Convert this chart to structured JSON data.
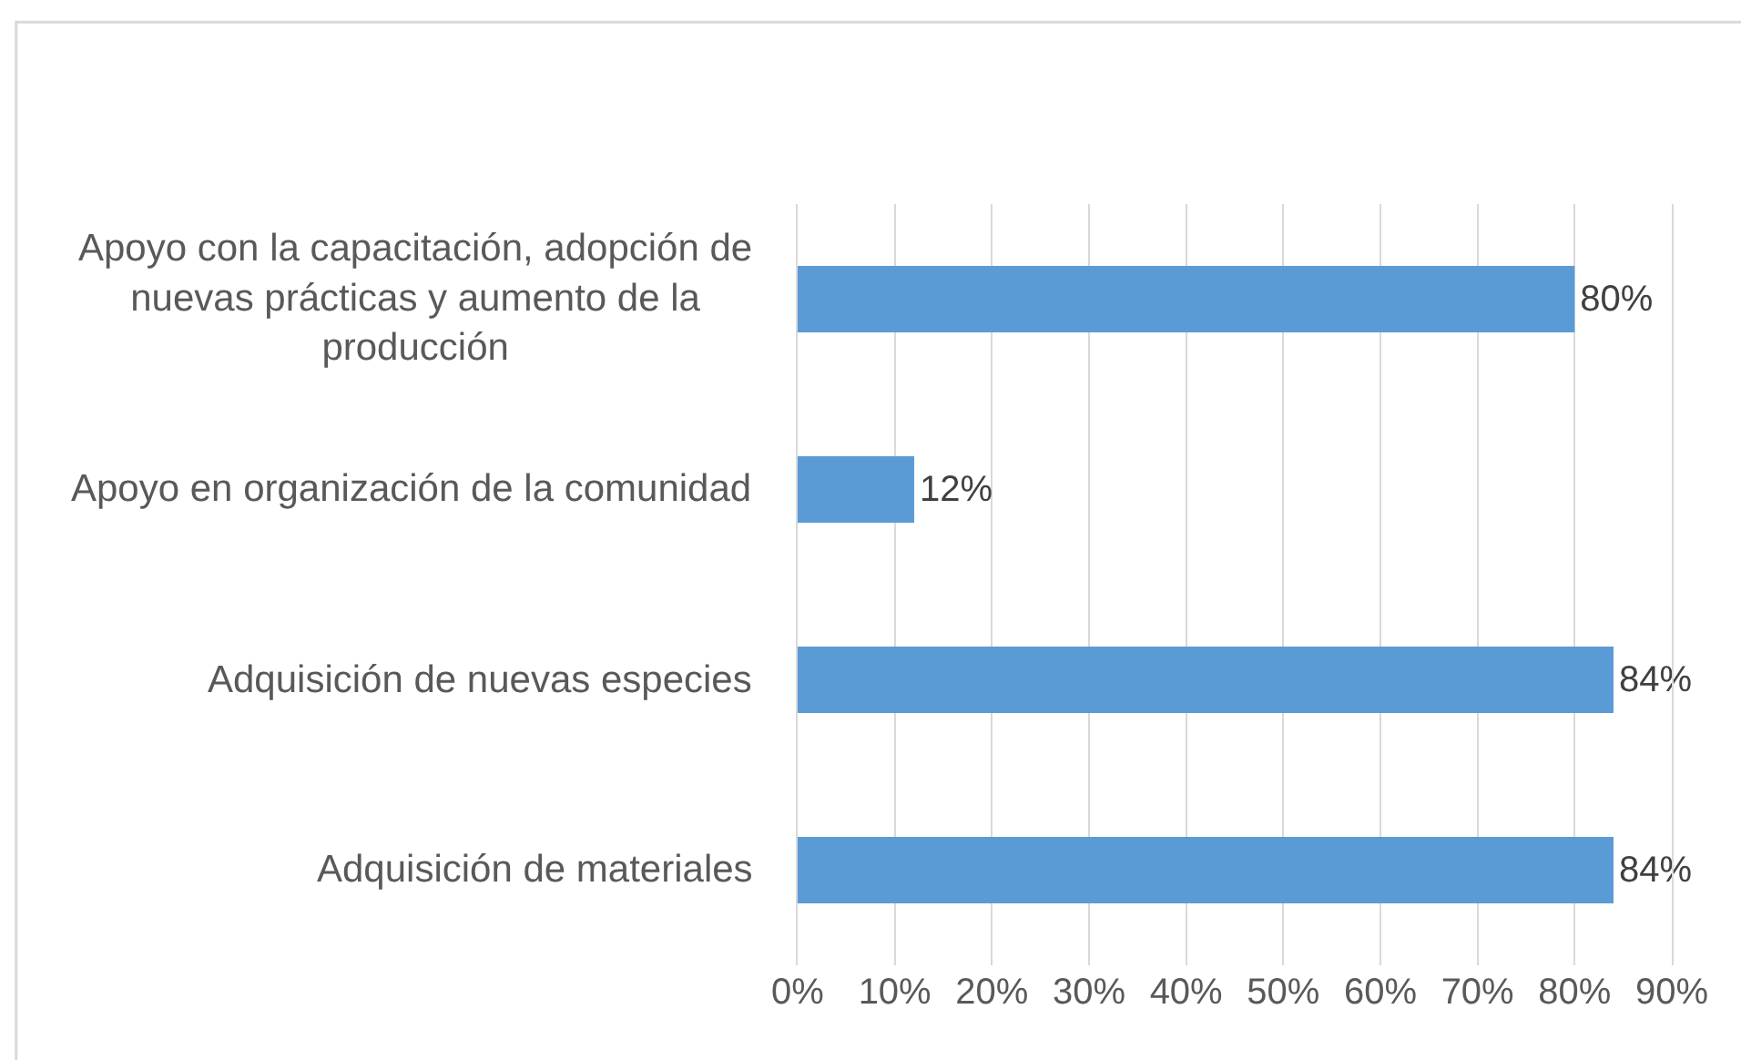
{
  "chart_data": {
    "type": "bar",
    "orientation": "horizontal",
    "categories": [
      "Apoyo con la capacitación, adopción de nuevas prácticas y aumento de la producción",
      "Apoyo en organización de la comunidad",
      "Adquisición de nuevas especies",
      "Adquisición de materiales"
    ],
    "values": [
      80,
      12,
      84,
      84
    ],
    "color": "#5b9bd5",
    "value_labels": [
      "80%",
      "12%",
      "84%",
      "84%"
    ],
    "xlim": [
      0,
      90
    ],
    "xticks": [
      {
        "value": 0,
        "label": "0%"
      },
      {
        "value": 10,
        "label": "10%"
      },
      {
        "value": 20,
        "label": "20%"
      },
      {
        "value": 30,
        "label": "30%"
      },
      {
        "value": 40,
        "label": "40%"
      },
      {
        "value": 50,
        "label": "50%"
      },
      {
        "value": 60,
        "label": "60%"
      },
      {
        "value": 70,
        "label": "70%"
      },
      {
        "value": 80,
        "label": "80%"
      },
      {
        "value": 90,
        "label": "90%"
      }
    ],
    "grid": "x"
  }
}
